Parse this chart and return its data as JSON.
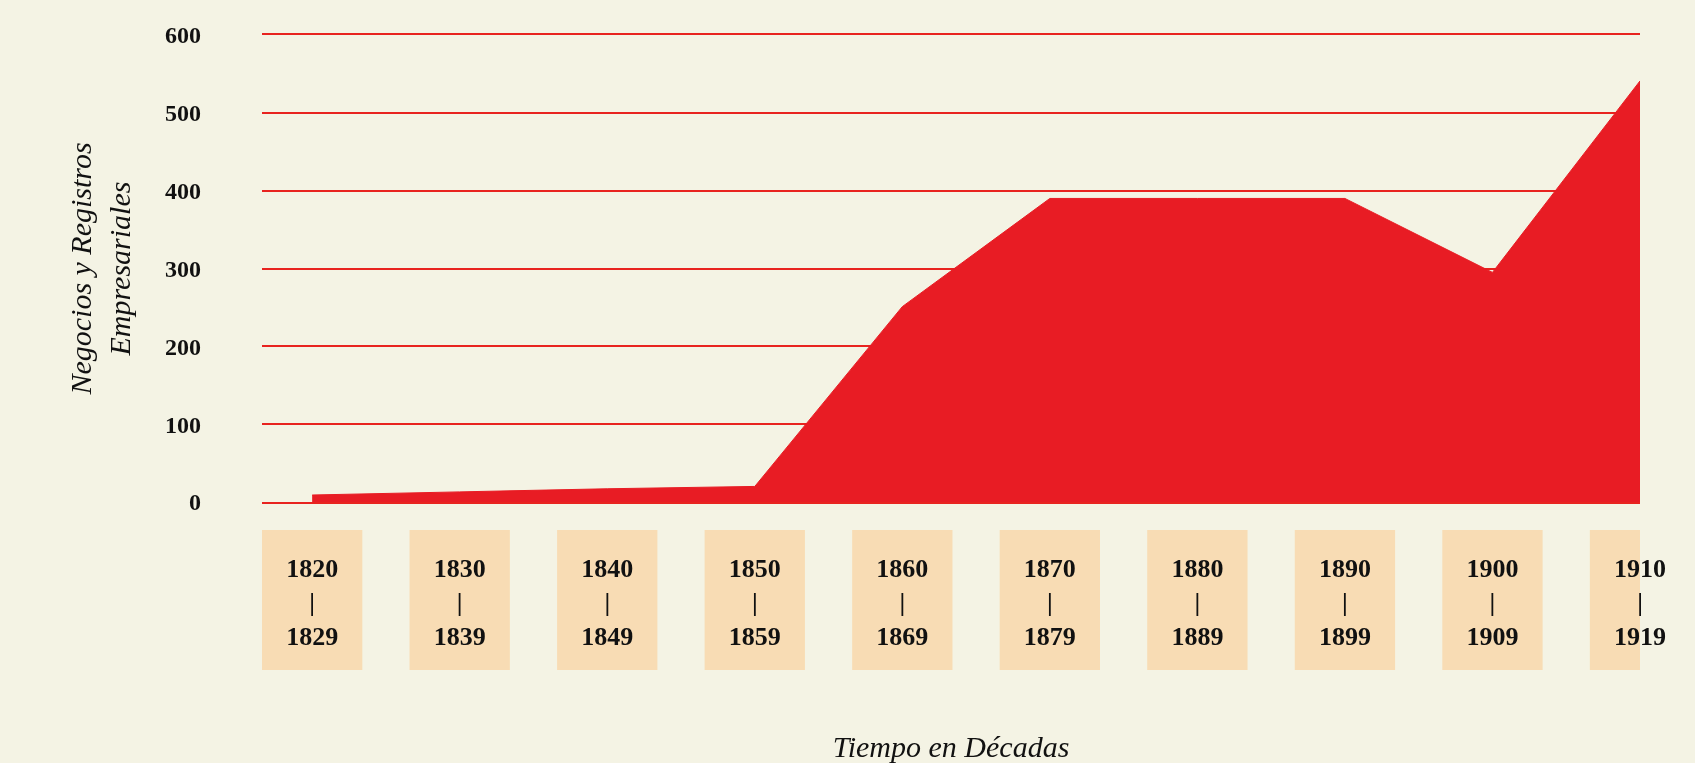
{
  "chart_data": {
    "type": "area",
    "xlabel": "Tiempo en Décadas",
    "ylabel": "Negocios y Registros\nEmpresariales",
    "categories": [
      "1820\n|\n1829",
      "1830\n|\n1839",
      "1840\n|\n1849",
      "1850\n|\n1859",
      "1860\n|\n1869",
      "1870\n|\n1879",
      "1880\n|\n1889",
      "1890\n|\n1899",
      "1900\n|\n1909",
      "1910\n|\n1919"
    ],
    "values": [
      9,
      13,
      17,
      20,
      251,
      390,
      390,
      390,
      295,
      541
    ],
    "color": "#e81c24",
    "ylim": [
      0,
      600
    ],
    "yticks": [
      0,
      100,
      200,
      300,
      400,
      500,
      600
    ],
    "grid": "y"
  }
}
